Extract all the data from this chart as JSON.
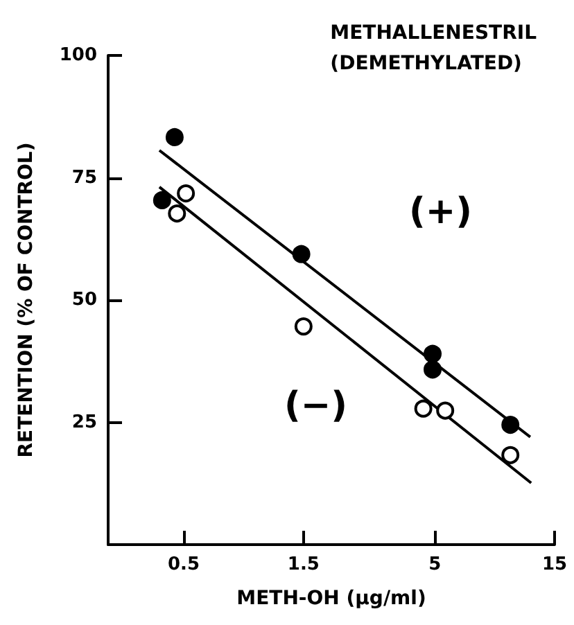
{
  "chart_data": {
    "type": "scatter",
    "title": "METHALLENESTRIL",
    "subtitle": "(DEMETHYLATED)",
    "xlabel": "METH-OH (µg/ml)",
    "ylabel": "RETENTION (% OF CONTROL)",
    "annotations": [
      "(+)",
      "(−)"
    ],
    "series": [
      {
        "color": "#000000",
        "x": [
          0.46,
          0.41,
          1.47,
          4.9,
          4.9,
          10
        ],
        "values": [
          83.3,
          70.4,
          59.4,
          39,
          35.8,
          24.5
        ]
      },
      {
        "color": "#ffffff",
        "x": [
          0.51,
          0.47,
          1.5,
          4.5,
          5.5,
          10
        ],
        "values": [
          71.8,
          67.7,
          44.6,
          27.8,
          27.4,
          18.3
        ]
      },
      {
        "type": "line",
        "marker": "none",
        "color": "#000000",
        "x": [
          0.4,
          12
        ],
        "values": [
          80.6,
          22
        ]
      },
      {
        "type": "line",
        "marker": "none",
        "color": "#000000",
        "x": [
          0.4,
          12.1
        ],
        "values": [
          73.1,
          12.6
        ]
      }
    ],
    "log": "x",
    "xlim": [
      0.25,
      15
    ],
    "xticks": [
      0.5,
      1.5,
      5,
      15
    ],
    "ylim": [
      0,
      100
    ],
    "yticks": [
      25,
      50,
      75,
      100
    ],
    "grid": false,
    "marker": "circle",
    "line_style": "solid"
  }
}
